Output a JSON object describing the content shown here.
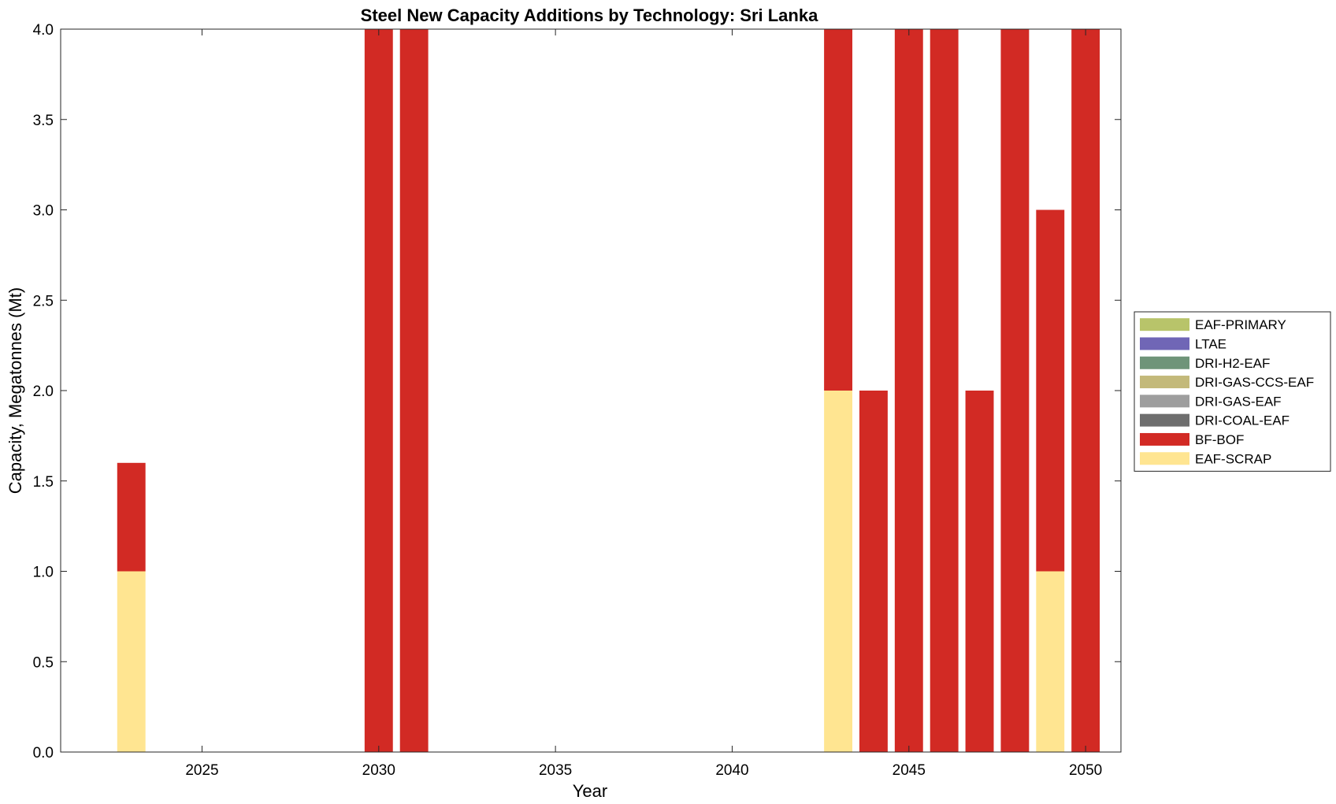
{
  "chart_data": {
    "type": "bar",
    "stacked": true,
    "title": "Steel New Capacity Additions by Technology: Sri Lanka",
    "xlabel": "Year",
    "ylabel": "Capacity, Megatonnes (Mt)",
    "xlim": [
      2021,
      2051
    ],
    "ylim": [
      0,
      4.0
    ],
    "x_ticks": [
      2025,
      2030,
      2035,
      2040,
      2045,
      2050
    ],
    "y_ticks": [
      "0.0",
      "0.5",
      "1.0",
      "1.5",
      "2.0",
      "2.5",
      "3.0",
      "3.5",
      "4.0"
    ],
    "grid": false,
    "legend_position": "right",
    "x": [
      2023,
      2030,
      2031,
      2043,
      2044,
      2045,
      2046,
      2047,
      2048,
      2049,
      2050
    ],
    "series": [
      {
        "name": "EAF-SCRAP",
        "color": "#ffe591",
        "values": [
          1.0,
          0,
          0,
          2.0,
          0,
          0,
          0,
          0,
          0,
          1.0,
          0
        ]
      },
      {
        "name": "BF-BOF",
        "color": "#d22a24",
        "values": [
          0.6,
          4.0,
          4.0,
          2.0,
          2.0,
          4.0,
          4.0,
          2.0,
          4.0,
          2.0,
          4.0
        ]
      },
      {
        "name": "DRI-COAL-EAF",
        "color": "#6e6e6e",
        "values": [
          0,
          0,
          0,
          0,
          0,
          0,
          0,
          0,
          0,
          0,
          0
        ]
      },
      {
        "name": "DRI-GAS-EAF",
        "color": "#9e9e9e",
        "values": [
          0,
          0,
          0,
          0,
          0,
          0,
          0,
          0,
          0,
          0,
          0
        ]
      },
      {
        "name": "DRI-GAS-CCS-EAF",
        "color": "#c3b97a",
        "values": [
          0,
          0,
          0,
          0,
          0,
          0,
          0,
          0,
          0,
          0,
          0
        ]
      },
      {
        "name": "DRI-H2-EAF",
        "color": "#6f9479",
        "values": [
          0,
          0,
          0,
          0,
          0,
          0,
          0,
          0,
          0,
          0,
          0
        ]
      },
      {
        "name": "LTAE",
        "color": "#7066b6",
        "values": [
          0,
          0,
          0,
          0,
          0,
          0,
          0,
          0,
          0,
          0,
          0
        ]
      },
      {
        "name": "EAF-PRIMARY",
        "color": "#b8c46a",
        "values": [
          0,
          0,
          0,
          0,
          0,
          0,
          0,
          0,
          0,
          0,
          0
        ]
      }
    ],
    "legend_order": [
      "EAF-PRIMARY",
      "LTAE",
      "DRI-H2-EAF",
      "DRI-GAS-CCS-EAF",
      "DRI-GAS-EAF",
      "DRI-COAL-EAF",
      "BF-BOF",
      "EAF-SCRAP"
    ]
  }
}
